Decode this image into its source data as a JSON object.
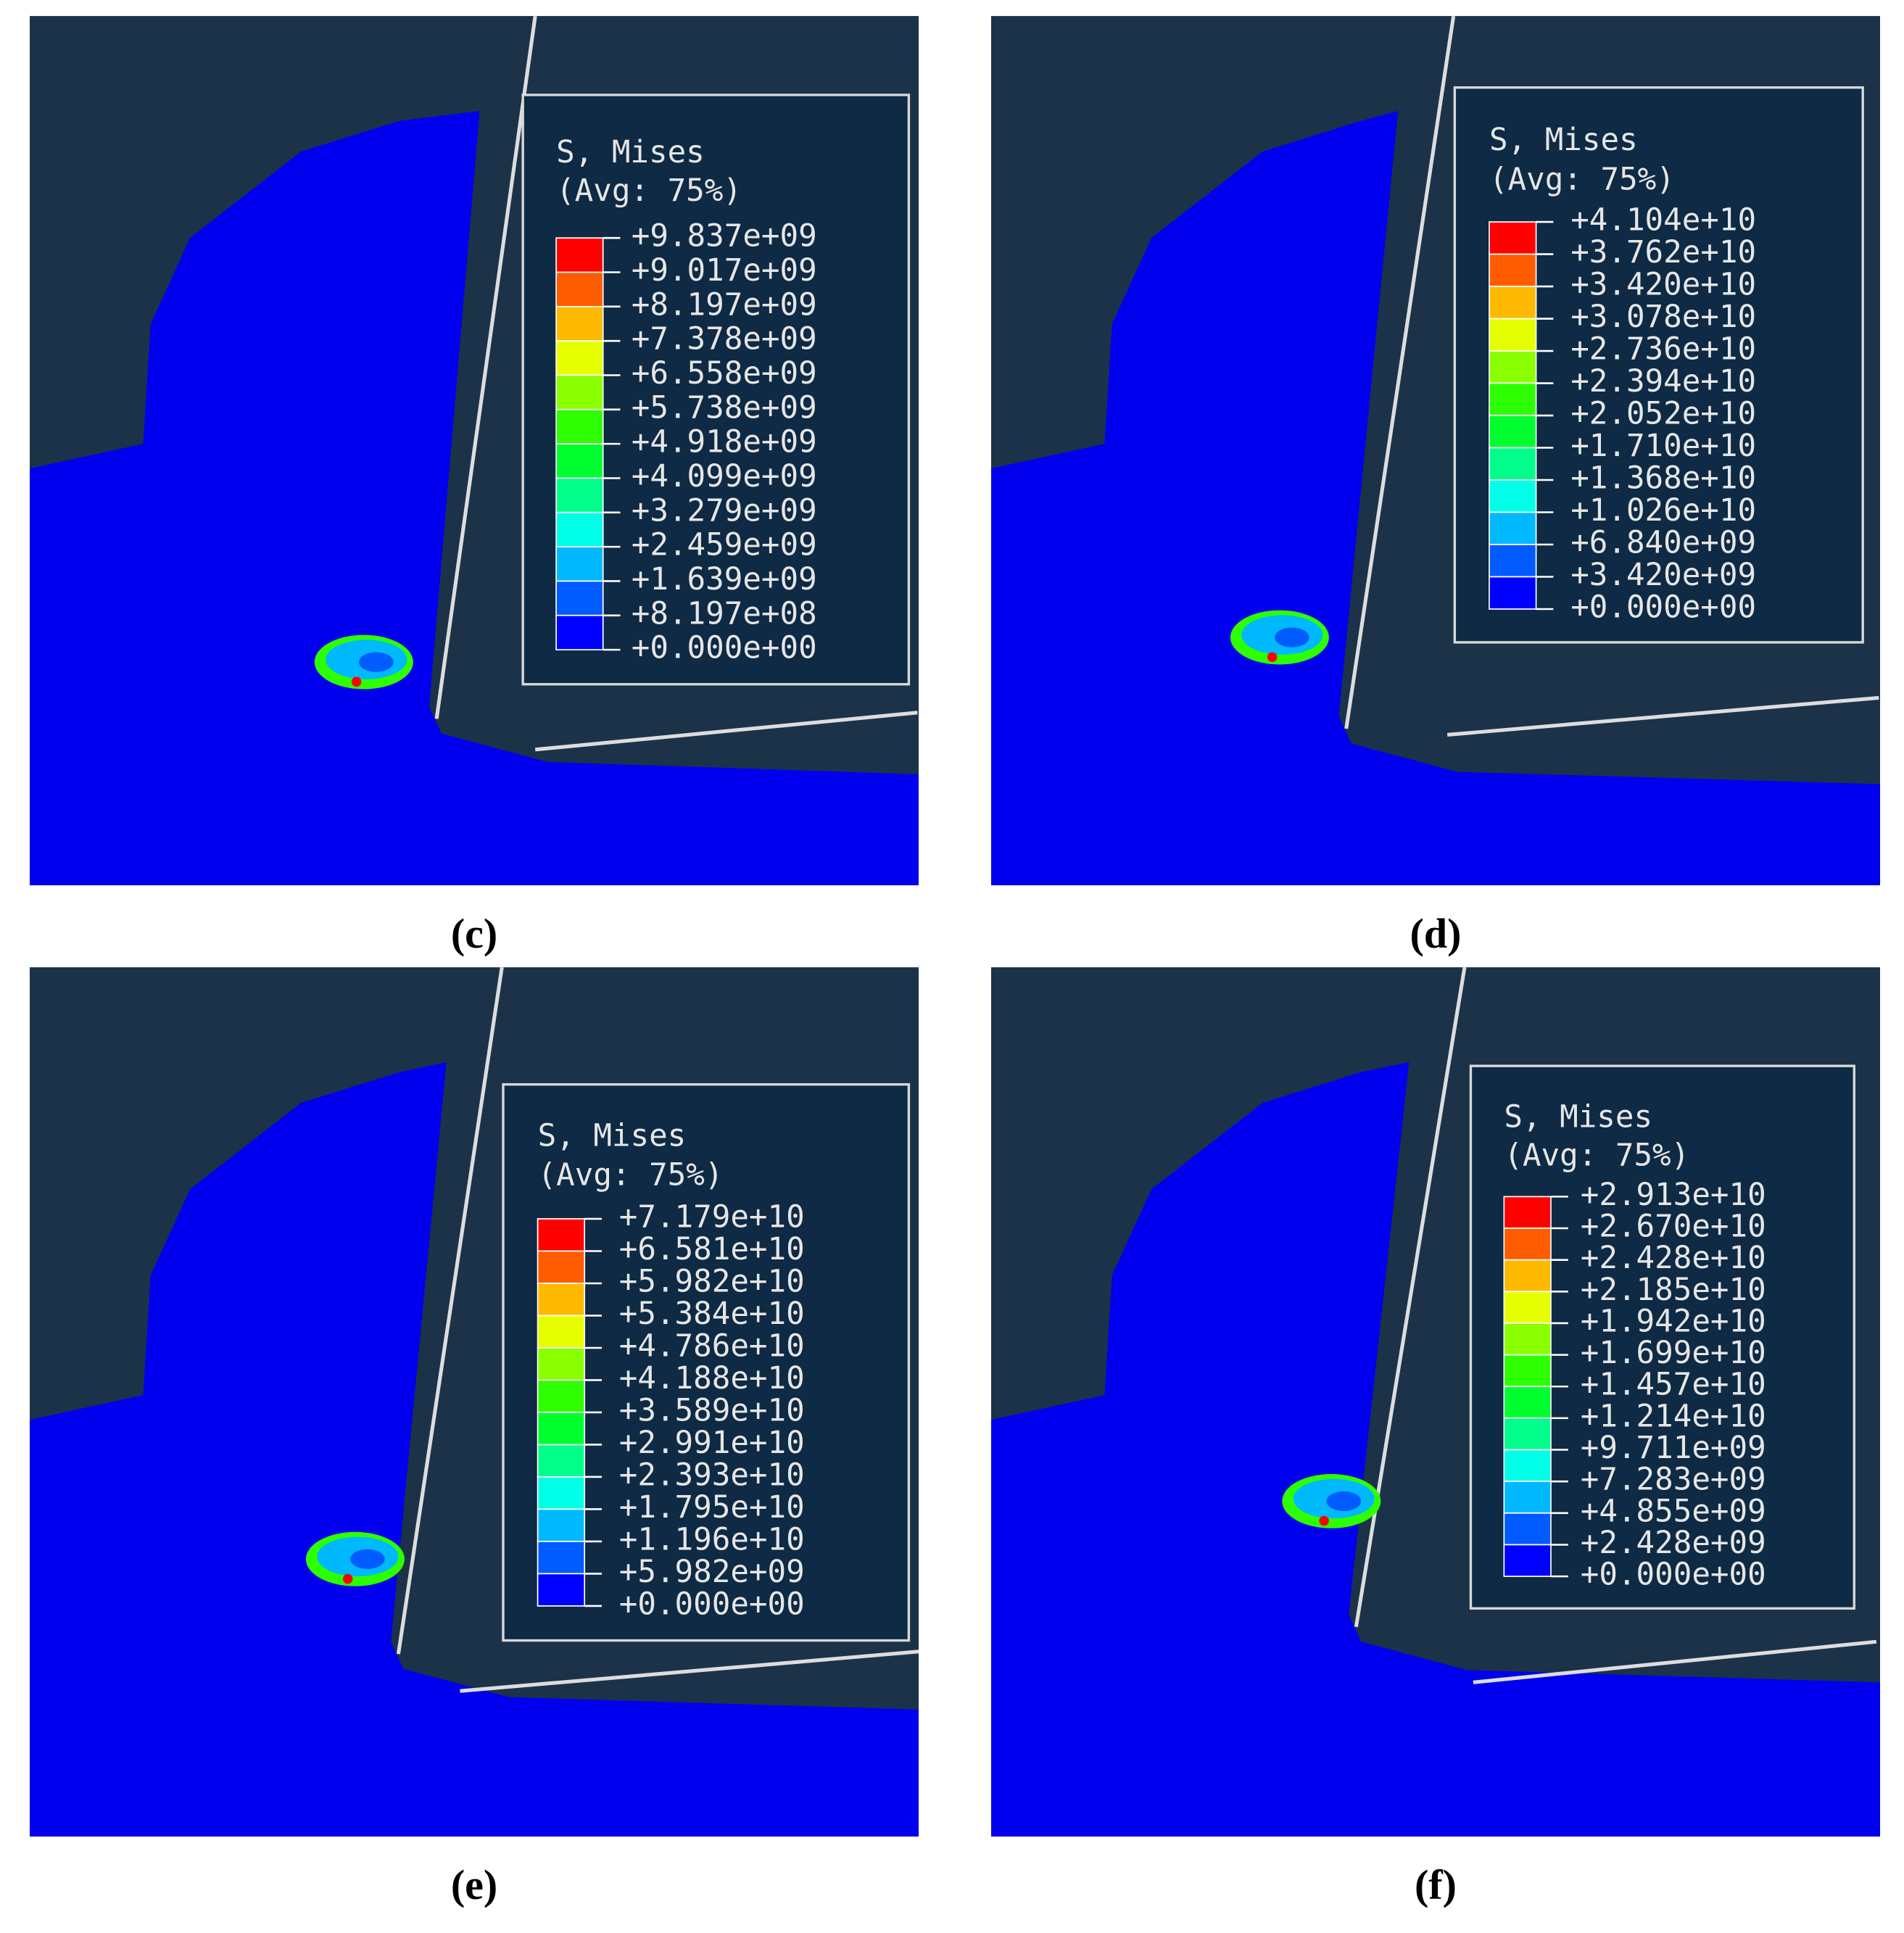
{
  "panels": [
    {
      "label": "(c)",
      "legend": {
        "title": "S, Mises",
        "subtitle": "(Avg: 75%)",
        "values": [
          "+9.837e+09",
          "+9.017e+09",
          "+8.197e+09",
          "+7.378e+09",
          "+6.558e+09",
          "+5.738e+09",
          "+4.918e+09",
          "+4.099e+09",
          "+3.279e+09",
          "+2.459e+09",
          "+1.639e+09",
          "+8.197e+08",
          "+0.000e+00"
        ]
      }
    },
    {
      "label": "(d)",
      "legend": {
        "title": "S, Mises",
        "subtitle": "(Avg: 75%)",
        "values": [
          "+4.104e+10",
          "+3.762e+10",
          "+3.420e+10",
          "+3.078e+10",
          "+2.736e+10",
          "+2.394e+10",
          "+2.052e+10",
          "+1.710e+10",
          "+1.368e+10",
          "+1.026e+10",
          "+6.840e+09",
          "+3.420e+09",
          "+0.000e+00"
        ]
      }
    },
    {
      "label": "(e)",
      "legend": {
        "title": "S, Mises",
        "subtitle": "(Avg: 75%)",
        "values": [
          "+7.179e+10",
          "+6.581e+10",
          "+5.982e+10",
          "+5.384e+10",
          "+4.786e+10",
          "+4.188e+10",
          "+3.589e+10",
          "+2.991e+10",
          "+2.393e+10",
          "+1.795e+10",
          "+1.196e+10",
          "+5.982e+09",
          "+0.000e+00"
        ]
      }
    },
    {
      "label": "(f)",
      "legend": {
        "title": "S, Mises",
        "subtitle": "(Avg: 75%)",
        "values": [
          "+2.913e+10",
          "+2.670e+10",
          "+2.428e+10",
          "+2.185e+10",
          "+1.942e+10",
          "+1.699e+10",
          "+1.457e+10",
          "+1.214e+10",
          "+9.711e+09",
          "+7.283e+09",
          "+4.855e+09",
          "+2.428e+09",
          "+0.000e+00"
        ]
      }
    }
  ]
}
